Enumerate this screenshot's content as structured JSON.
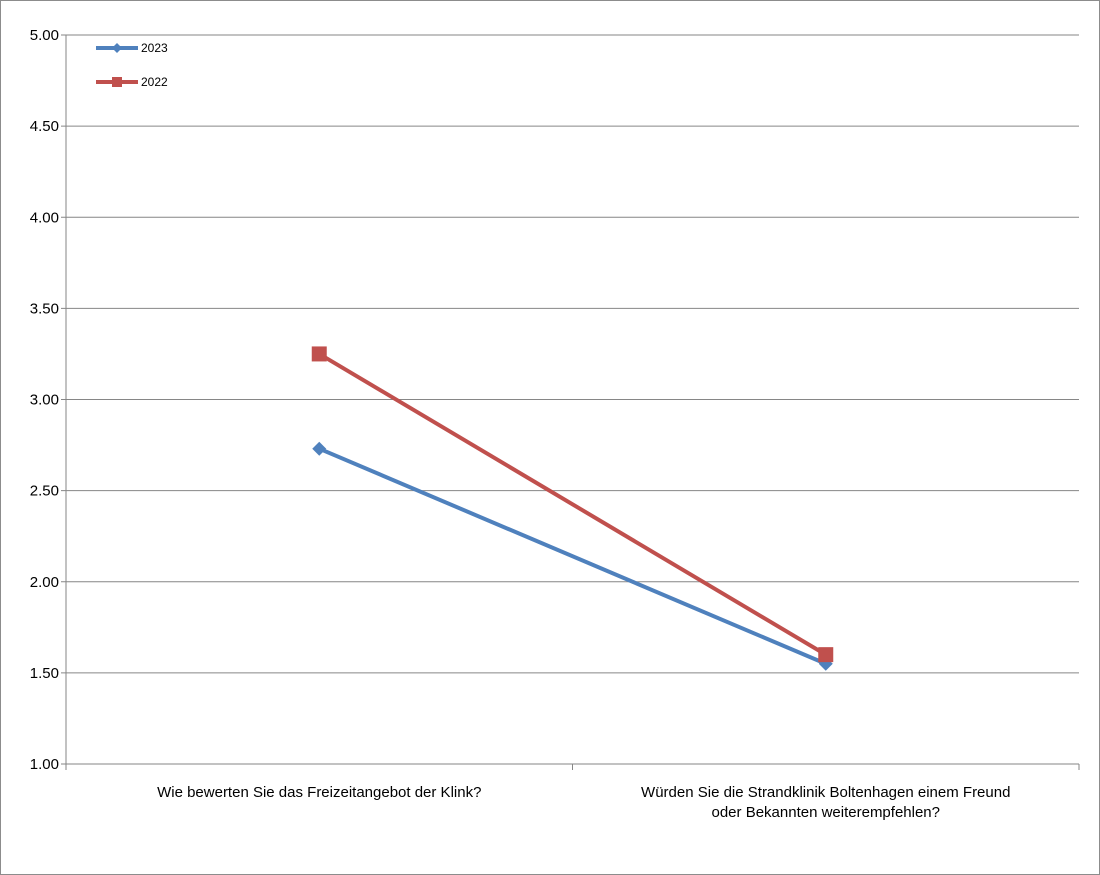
{
  "chart_data": {
    "type": "line",
    "categories": [
      [
        "Wie bewerten Sie das Freizeitangebot der Klink?"
      ],
      [
        "Würden Sie die Strandklinik Boltenhagen einem Freund",
        "oder Bekannten weiterempfehlen?"
      ]
    ],
    "series": [
      {
        "name": "2023",
        "values": [
          2.73,
          1.55
        ],
        "color": "#4f81bd",
        "marker": "diamond"
      },
      {
        "name": "2022",
        "values": [
          3.25,
          1.6
        ],
        "color": "#c0504d",
        "marker": "square"
      }
    ],
    "ylim": [
      1.0,
      5.0
    ],
    "yticks": [
      "1.00",
      "1.50",
      "2.00",
      "2.50",
      "3.00",
      "3.50",
      "4.00",
      "4.50",
      "5.00"
    ],
    "grid": true,
    "legend": "top-left"
  }
}
